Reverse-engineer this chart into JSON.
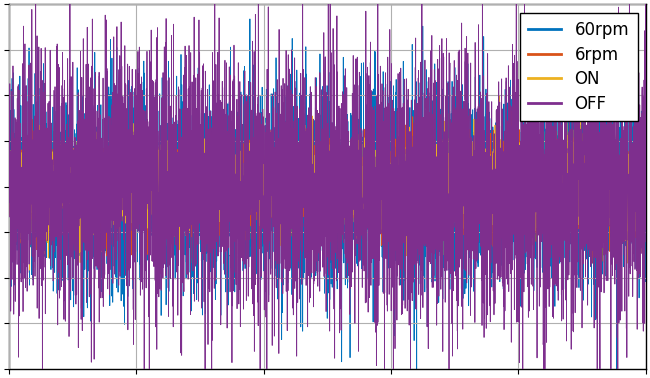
{
  "title": "",
  "xlabel": "",
  "ylabel": "",
  "xlim": [
    0,
    1
  ],
  "ylim": [
    -1,
    1
  ],
  "n_points": 5000,
  "line_colors": {
    "60rpm": "#0072BD",
    "6rpm": "#D95319",
    "ON": "#EDB120",
    "OFF": "#7E2F8E"
  },
  "amplitudes": {
    "60rpm": 0.62,
    "6rpm": 0.3,
    "ON": 0.3,
    "OFF": 0.85
  },
  "legend_labels": [
    "60rpm",
    "6rpm",
    "ON",
    "OFF"
  ],
  "background_color": "#ffffff",
  "grid": true,
  "grid_color": "#b0b0b0",
  "tick_label_size": 10,
  "legend_fontsize": 12,
  "linewidth": 0.6
}
